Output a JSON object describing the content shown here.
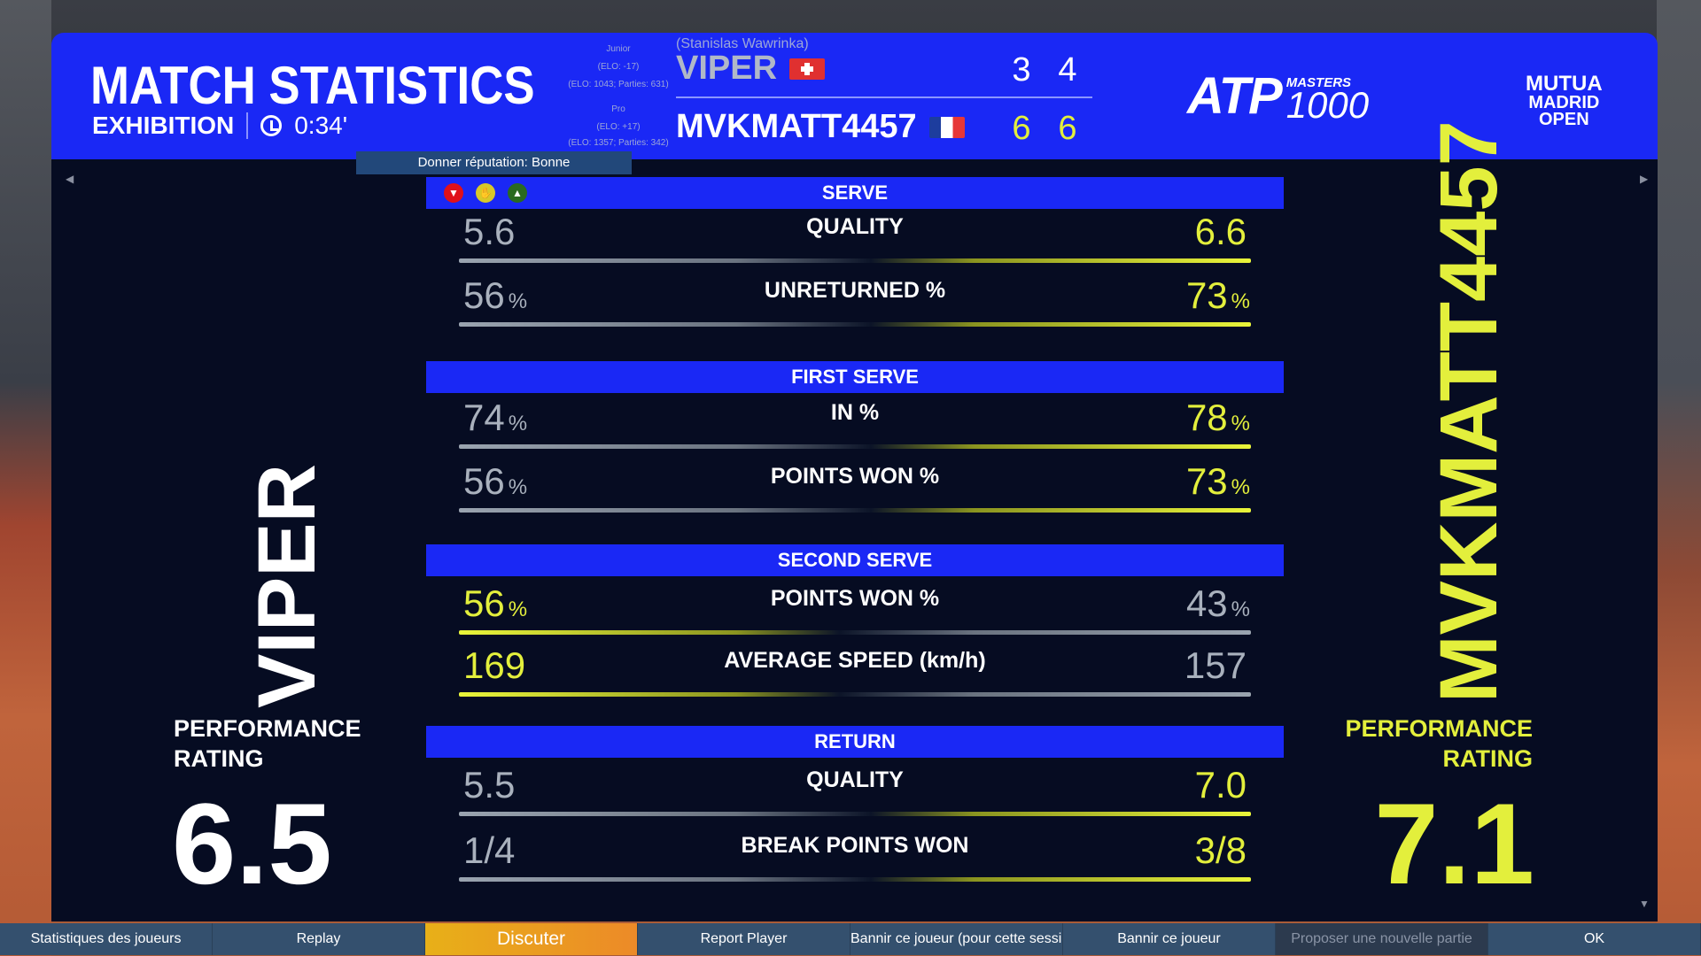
{
  "header": {
    "title": "MATCH STATISTICS",
    "mode": "EXHIBITION",
    "clock_icon": "clock-icon",
    "time": "0:34'"
  },
  "players": [
    {
      "real_name": "(Stanislas Wawrinka)",
      "name": "VIPER",
      "flag": "switzerland",
      "level": "Junior",
      "elo_change": "(ELO: -17)",
      "elo_info": "(ELO: 1043; Parties: 631)",
      "sets": [
        "3",
        "4"
      ]
    },
    {
      "name": "MVKMATT4457",
      "flag": "france",
      "level": "Pro",
      "elo_change": "(ELO: +17)",
      "elo_info": "(ELO: 1357; Parties: 342)",
      "sets": [
        "6",
        "6"
      ]
    }
  ],
  "logos": {
    "atp": "ATP",
    "masters": "MASTERS",
    "masters_num": "1000",
    "mutua": [
      "MUTUA",
      "MADRID",
      "OPEN"
    ]
  },
  "reputation": {
    "label": "Donner réputation: Bonne",
    "icons": [
      "thumbs-down-icon",
      "neutral-hand-icon",
      "thumbs-up-icon"
    ]
  },
  "sections": [
    {
      "title": "SERVE",
      "rows": [
        {
          "label": "QUALITY",
          "left": "5.6",
          "right": "6.6",
          "left_unit": "",
          "right_unit": "",
          "winner": "right"
        },
        {
          "label": "UNRETURNED %",
          "left": "56",
          "right": "73",
          "left_unit": "%",
          "right_unit": "%",
          "winner": "right"
        }
      ]
    },
    {
      "title": "FIRST SERVE",
      "rows": [
        {
          "label": "IN %",
          "left": "74",
          "right": "78",
          "left_unit": "%",
          "right_unit": "%",
          "winner": "right"
        },
        {
          "label": "POINTS WON %",
          "left": "56",
          "right": "73",
          "left_unit": "%",
          "right_unit": "%",
          "winner": "right"
        }
      ]
    },
    {
      "title": "SECOND SERVE",
      "rows": [
        {
          "label": "POINTS WON %",
          "left": "56",
          "right": "43",
          "left_unit": "%",
          "right_unit": "%",
          "winner": "left"
        },
        {
          "label": "AVERAGE SPEED (km/h)",
          "left": "169",
          "right": "157",
          "left_unit": "",
          "right_unit": "",
          "winner": "left"
        }
      ]
    },
    {
      "title": "RETURN",
      "rows": [
        {
          "label": "QUALITY",
          "left": "5.5",
          "right": "7.0",
          "left_unit": "",
          "right_unit": "",
          "winner": "right"
        },
        {
          "label": "BREAK POINTS WON",
          "left": "1/4",
          "right": "3/8",
          "left_unit": "",
          "right_unit": "",
          "winner": "right"
        }
      ]
    }
  ],
  "left_panel": {
    "name": "VIPER",
    "perf_line1": "PERFORMANCE",
    "perf_line2": "RATING",
    "rating": "6.5"
  },
  "right_panel": {
    "name": "MVKMATT4457",
    "perf_line1": "PERFORMANCE",
    "perf_line2": "RATING",
    "rating": "7.1"
  },
  "buttons": [
    "Statistiques des joueurs",
    "Replay",
    "Discuter",
    "Report Player",
    "Bannir ce joueur (pour cette session)",
    "Bannir ce joueur",
    "Proposer une nouvelle partie",
    "OK"
  ],
  "colors": {
    "panel_blue": "#1a28f5",
    "winner": "#e3ef3c",
    "loser": "#a9b1bd",
    "background": "#060c22",
    "highlight_button": "#e8a020"
  }
}
